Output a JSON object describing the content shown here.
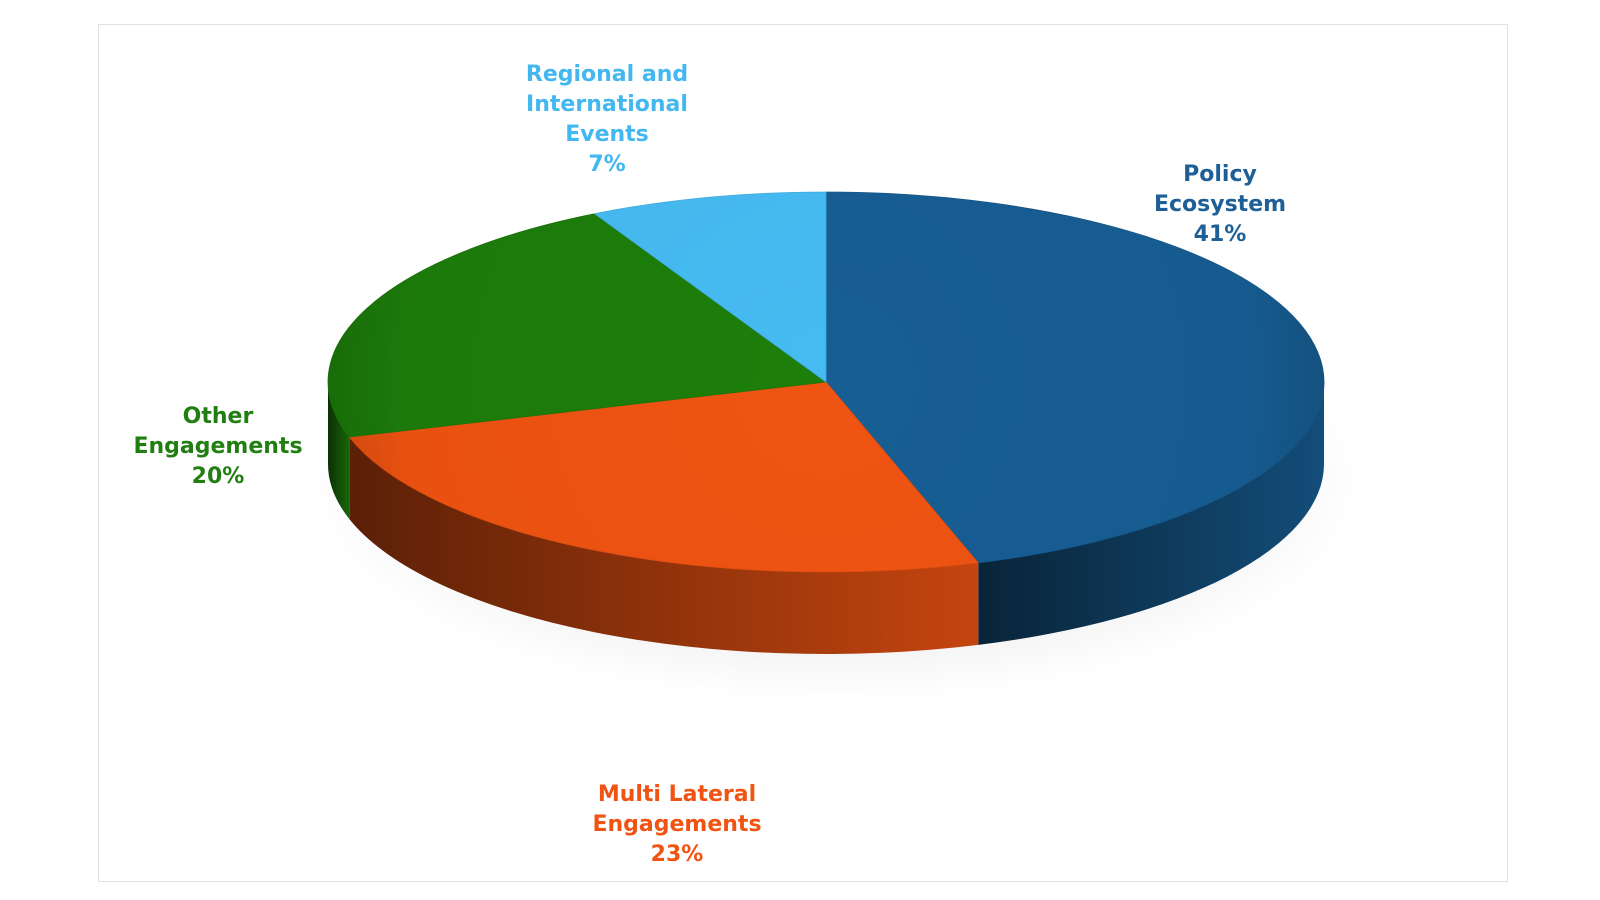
{
  "chart_data": {
    "type": "pie",
    "style": "3d",
    "title": "",
    "slices": [
      {
        "label_lines": [
          "Policy",
          "Ecosystem"
        ],
        "value_label": "41%",
        "value": 41,
        "color": "#175e94"
      },
      {
        "label_lines": [
          "Multi Lateral",
          "Engagements"
        ],
        "value_label": "23%",
        "value": 23,
        "color": "#f05412"
      },
      {
        "label_lines": [
          "Other",
          "Engagements"
        ],
        "value_label": "20%",
        "value": 20,
        "color": "#1d7e0a"
      },
      {
        "label_lines": [
          "Regional and",
          "International",
          "Events"
        ],
        "value_label": "7%",
        "value": 7,
        "color": "#46bcf2"
      }
    ],
    "label_colors": [
      "#1d5f96",
      "#f05412",
      "#217f12",
      "#43b8f0"
    ],
    "legend": "none"
  }
}
